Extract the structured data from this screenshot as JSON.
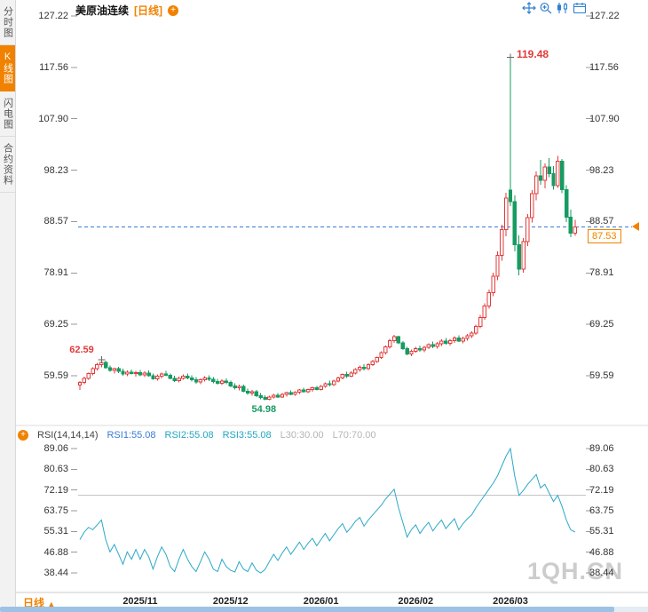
{
  "header": {
    "title": "美原油连续",
    "period_tag": "[日线]",
    "add_indicator_icon": "circle-plus",
    "toolbar_icon_names": [
      "pan-tool",
      "zoom-tool",
      "candlestick-tool",
      "calendar-tool"
    ]
  },
  "sidebar": {
    "tabs": [
      {
        "label": "分时图",
        "active": false
      },
      {
        "label": "K线图",
        "active": true
      },
      {
        "label": "闪电图",
        "active": false
      },
      {
        "label": "合约资料",
        "active": false
      }
    ]
  },
  "colors": {
    "accent_orange": "#f08200",
    "up_red": "#e23b3b",
    "down_green": "#169b62",
    "dashed_price_line": "#3a7bd5",
    "rsi_line": "#2ba8c8",
    "watermark_gray": "#cccccc"
  },
  "price_tag": "87.53",
  "rsi_panel": {
    "title": "RSI(14,14,14)",
    "rsi1": "RSI1:55.08",
    "rsi2": "RSI2:55.08",
    "rsi3": "RSI3:55.08",
    "l30": "L30:30.00",
    "l70": "L70:70.00"
  },
  "footer": {
    "period": "日线",
    "watermark": "1QH.CN"
  },
  "chart_data": [
    {
      "type": "candlestick",
      "title": "美原油连续 日线",
      "symbol": "美原油连续",
      "period": "日线",
      "up_color": "#e23b3b",
      "down_color": "#169b62",
      "ylim": [
        54.98,
        127.22
      ],
      "y_ticks": [
        127.22,
        117.56,
        107.9,
        98.23,
        88.57,
        78.91,
        69.25,
        59.59
      ],
      "x_tick_labels": [
        {
          "text": "2025/11",
          "i": 14
        },
        {
          "text": "2025/12",
          "i": 35
        },
        {
          "text": "2026/01",
          "i": 56
        },
        {
          "text": "2026/02",
          "i": 78
        },
        {
          "text": "2026/03",
          "i": 100
        }
      ],
      "current_price": 87.53,
      "annotations": [
        {
          "text": "62.59",
          "i": 5,
          "kind": "high",
          "cls": "up",
          "big": false
        },
        {
          "text": "54.98",
          "i": 43,
          "kind": "low",
          "cls": "down",
          "big": false
        },
        {
          "text": "119.48",
          "i": 100,
          "kind": "high",
          "cls": "up",
          "big": true
        }
      ],
      "candles": [
        [
          57.8,
          58.6,
          56.9,
          58.3
        ],
        [
          58.3,
          59.4,
          58.0,
          59.1
        ],
        [
          59.1,
          60.2,
          58.8,
          60.0
        ],
        [
          60.0,
          61.2,
          59.7,
          60.9
        ],
        [
          60.9,
          62.0,
          60.6,
          61.7
        ],
        [
          61.7,
          62.59,
          61.2,
          62.1
        ],
        [
          62.1,
          62.4,
          60.9,
          61.1
        ],
        [
          61.1,
          61.5,
          60.3,
          60.6
        ],
        [
          60.6,
          61.1,
          60.0,
          60.9
        ],
        [
          60.9,
          61.3,
          60.1,
          60.4
        ],
        [
          60.4,
          60.9,
          59.6,
          59.9
        ],
        [
          59.9,
          60.6,
          59.5,
          60.3
        ],
        [
          60.3,
          60.8,
          59.8,
          60.0
        ],
        [
          60.0,
          60.5,
          59.4,
          60.2
        ],
        [
          60.2,
          60.7,
          59.5,
          59.8
        ],
        [
          59.8,
          60.4,
          59.3,
          60.1
        ],
        [
          60.1,
          60.6,
          59.4,
          59.6
        ],
        [
          59.6,
          60.0,
          58.8,
          59.0
        ],
        [
          59.0,
          59.8,
          58.7,
          59.5
        ],
        [
          59.5,
          60.2,
          59.1,
          59.9
        ],
        [
          59.9,
          60.5,
          59.5,
          59.7
        ],
        [
          59.7,
          60.0,
          58.9,
          59.1
        ],
        [
          59.1,
          59.6,
          58.4,
          58.7
        ],
        [
          58.7,
          59.4,
          58.3,
          59.1
        ],
        [
          59.1,
          59.8,
          58.8,
          59.5
        ],
        [
          59.5,
          60.0,
          58.9,
          59.2
        ],
        [
          59.2,
          59.7,
          58.5,
          58.8
        ],
        [
          58.8,
          59.3,
          58.1,
          58.4
        ],
        [
          58.4,
          59.1,
          58.0,
          58.8
        ],
        [
          58.8,
          59.5,
          58.5,
          59.2
        ],
        [
          59.2,
          59.7,
          58.6,
          58.9
        ],
        [
          58.9,
          59.3,
          58.2,
          58.5
        ],
        [
          58.5,
          59.0,
          57.9,
          58.2
        ],
        [
          58.2,
          58.9,
          57.8,
          58.6
        ],
        [
          58.6,
          59.1,
          58.0,
          58.3
        ],
        [
          58.3,
          58.7,
          57.4,
          57.7
        ],
        [
          57.7,
          58.2,
          57.0,
          57.3
        ],
        [
          57.3,
          57.9,
          56.8,
          57.6
        ],
        [
          57.6,
          57.9,
          56.5,
          56.7
        ],
        [
          56.7,
          57.2,
          56.0,
          56.3
        ],
        [
          56.3,
          56.9,
          55.8,
          56.6
        ],
        [
          56.6,
          56.9,
          55.6,
          55.8
        ],
        [
          55.8,
          56.3,
          55.2,
          55.5
        ],
        [
          55.5,
          55.9,
          54.98,
          55.2
        ],
        [
          55.2,
          55.8,
          54.98,
          55.6
        ],
        [
          55.6,
          56.2,
          55.3,
          55.9
        ],
        [
          55.9,
          56.3,
          55.4,
          55.6
        ],
        [
          55.6,
          56.3,
          55.4,
          56.1
        ],
        [
          56.1,
          56.6,
          55.7,
          56.4
        ],
        [
          56.4,
          56.8,
          55.9,
          56.1
        ],
        [
          56.1,
          56.7,
          55.8,
          56.5
        ],
        [
          56.5,
          57.1,
          56.2,
          56.9
        ],
        [
          56.9,
          57.3,
          56.4,
          56.6
        ],
        [
          56.6,
          57.2,
          56.3,
          57.0
        ],
        [
          57.0,
          57.5,
          56.6,
          57.3
        ],
        [
          57.3,
          57.7,
          56.8,
          57.0
        ],
        [
          57.0,
          57.8,
          56.8,
          57.6
        ],
        [
          57.6,
          58.3,
          57.3,
          58.1
        ],
        [
          58.1,
          58.7,
          57.6,
          57.9
        ],
        [
          57.9,
          58.8,
          57.7,
          58.6
        ],
        [
          58.6,
          59.4,
          58.3,
          59.2
        ],
        [
          59.2,
          60.0,
          58.9,
          59.8
        ],
        [
          59.8,
          60.3,
          59.2,
          59.5
        ],
        [
          59.5,
          60.4,
          59.3,
          60.1
        ],
        [
          60.1,
          61.0,
          59.8,
          60.8
        ],
        [
          60.8,
          61.5,
          60.3,
          61.2
        ],
        [
          61.2,
          61.8,
          60.6,
          60.9
        ],
        [
          60.9,
          61.9,
          60.7,
          61.7
        ],
        [
          61.7,
          62.6,
          61.4,
          62.3
        ],
        [
          62.3,
          63.2,
          62.0,
          63.0
        ],
        [
          63.0,
          64.2,
          62.8,
          63.9
        ],
        [
          63.9,
          65.3,
          63.6,
          65.0
        ],
        [
          65.0,
          66.5,
          64.7,
          66.2
        ],
        [
          66.2,
          67.3,
          65.8,
          66.9
        ],
        [
          66.9,
          67.1,
          65.5,
          65.8
        ],
        [
          65.8,
          66.1,
          64.4,
          64.7
        ],
        [
          64.7,
          65.0,
          63.4,
          63.7
        ],
        [
          63.7,
          64.5,
          63.3,
          64.2
        ],
        [
          64.2,
          65.0,
          63.9,
          64.7
        ],
        [
          64.7,
          65.3,
          64.1,
          64.4
        ],
        [
          64.4,
          65.2,
          64.0,
          64.9
        ],
        [
          64.9,
          65.7,
          64.6,
          65.4
        ],
        [
          65.4,
          66.0,
          64.8,
          65.1
        ],
        [
          65.1,
          65.9,
          64.7,
          65.6
        ],
        [
          65.6,
          66.4,
          65.2,
          66.1
        ],
        [
          66.1,
          66.7,
          65.4,
          65.7
        ],
        [
          65.7,
          66.5,
          65.3,
          66.2
        ],
        [
          66.2,
          67.0,
          65.8,
          66.7
        ],
        [
          66.7,
          67.2,
          65.9,
          66.1
        ],
        [
          66.1,
          66.9,
          65.7,
          66.6
        ],
        [
          66.6,
          67.4,
          66.2,
          67.1
        ],
        [
          67.1,
          67.9,
          66.7,
          67.6
        ],
        [
          67.6,
          69.2,
          67.3,
          68.9
        ],
        [
          68.9,
          71.0,
          68.5,
          70.5
        ],
        [
          70.5,
          73.2,
          70.1,
          72.7
        ],
        [
          72.7,
          75.8,
          72.2,
          75.2
        ],
        [
          75.2,
          79.0,
          74.5,
          78.3
        ],
        [
          78.3,
          83.0,
          77.5,
          82.2
        ],
        [
          82.2,
          88.0,
          81.2,
          87.1
        ],
        [
          87.1,
          94.0,
          85.8,
          93.0
        ],
        [
          94.5,
          119.48,
          91.5,
          92.3
        ],
        [
          92.3,
          93.5,
          83.0,
          84.2
        ],
        [
          84.2,
          86.0,
          78.5,
          79.6
        ],
        [
          79.6,
          85.5,
          79.0,
          84.8
        ],
        [
          84.8,
          90.0,
          84.0,
          89.3
        ],
        [
          89.3,
          94.5,
          88.4,
          93.8
        ],
        [
          93.8,
          98.0,
          92.6,
          97.2
        ],
        [
          97.2,
          100.2,
          95.5,
          96.3
        ],
        [
          96.3,
          99.5,
          94.8,
          98.8
        ],
        [
          98.8,
          100.5,
          96.9,
          97.6
        ],
        [
          97.6,
          99.0,
          94.6,
          95.3
        ],
        [
          95.3,
          100.9,
          94.9,
          99.9
        ],
        [
          99.9,
          100.3,
          93.9,
          94.6
        ],
        [
          94.6,
          95.4,
          88.5,
          89.4
        ],
        [
          89.4,
          90.8,
          85.6,
          86.4
        ],
        [
          86.4,
          88.9,
          85.9,
          87.53
        ]
      ]
    },
    {
      "type": "line",
      "name": "RSI(14,14,14)",
      "color": "#2ba8c8",
      "ylim": [
        38.44,
        89.06
      ],
      "y_ticks": [
        89.06,
        80.63,
        72.19,
        63.75,
        55.31,
        46.88,
        38.44
      ],
      "ref_lines": [
        {
          "label": "L70",
          "value": 70.0
        },
        {
          "label": "L30",
          "value": 30.0
        }
      ],
      "values": [
        52,
        55,
        57,
        56,
        58,
        60,
        52,
        47,
        50,
        46,
        42,
        47,
        44,
        48,
        44,
        48,
        45,
        40,
        45,
        49,
        46,
        41,
        39,
        44,
        48,
        44,
        41,
        39,
        43,
        47,
        44,
        40,
        39,
        44,
        41,
        39.5,
        38.8,
        43,
        40,
        39,
        42.5,
        39.5,
        38.44,
        39.8,
        43,
        46,
        43.5,
        46.5,
        49,
        46,
        48.5,
        51,
        48,
        50.5,
        52.5,
        49.5,
        52,
        54.5,
        51.5,
        54,
        56.5,
        58.5,
        55,
        57,
        59.5,
        61,
        57.5,
        60,
        62,
        64,
        66,
        68.5,
        70.5,
        72.5,
        65,
        59,
        53,
        56,
        58,
        54.5,
        57,
        59,
        55.5,
        58,
        60,
        56.5,
        58.5,
        60.5,
        56,
        58.5,
        60.5,
        62,
        65,
        67.5,
        70,
        72.5,
        75,
        78,
        82,
        86,
        89.06,
        78,
        70,
        72,
        74.5,
        76.5,
        78.5,
        73,
        74.5,
        71,
        67.5,
        70,
        65.5,
        60,
        56,
        55.08
      ]
    }
  ]
}
